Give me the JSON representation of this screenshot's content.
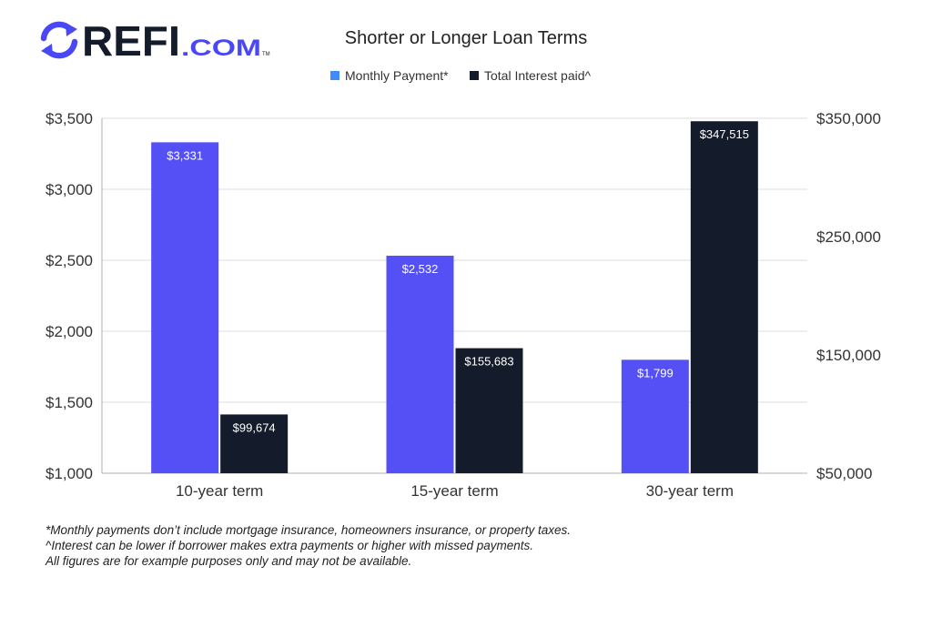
{
  "brand": {
    "logo_text": "REFI",
    "logo_suffix": ".COM",
    "logo_mark": "TM",
    "logo_icon": "refresh-arrows-icon",
    "brand_color": "#4a47f5",
    "dark_color": "#141c2b"
  },
  "chart_data": {
    "type": "bar",
    "title": "Shorter or Longer Loan Terms",
    "categories": [
      "10-year term",
      "15-year term",
      "30-year term"
    ],
    "series": [
      {
        "name": "Monthly Payment*",
        "axis": "left",
        "color": "#5450f6",
        "values": [
          3331,
          2532,
          1799
        ],
        "labels": [
          "$3,331",
          "$2,532",
          "$1,799"
        ]
      },
      {
        "name": "Total Interest paid^",
        "axis": "right",
        "color": "#141c2b",
        "values": [
          99674,
          155683,
          347515
        ],
        "labels": [
          "$99,674",
          "$155,683",
          "$347,515"
        ]
      }
    ],
    "y_left": {
      "range": [
        1000,
        3500
      ],
      "ticks": [
        1000,
        1500,
        2000,
        2500,
        3000,
        3500
      ],
      "tick_labels": [
        "$1,000",
        "$1,500",
        "$2,000",
        "$2,500",
        "$3,000",
        "$3,500"
      ]
    },
    "y_right": {
      "range": [
        50000,
        350000
      ],
      "ticks": [
        50000,
        150000,
        250000,
        350000
      ],
      "tick_labels": [
        "$50,000",
        "$150,000",
        "$250,000",
        "$350,000"
      ]
    },
    "grid": true,
    "legend_position": "top-center",
    "xlabel": "",
    "ylabel": ""
  },
  "footnotes": [
    "*Monthly payments don’t include mortgage insurance, homeowners insurance, or property taxes.",
    "^Interest can be lower if borrower makes extra payments or higher with missed payments.",
    "All figures are for example purposes only and may not be available."
  ]
}
